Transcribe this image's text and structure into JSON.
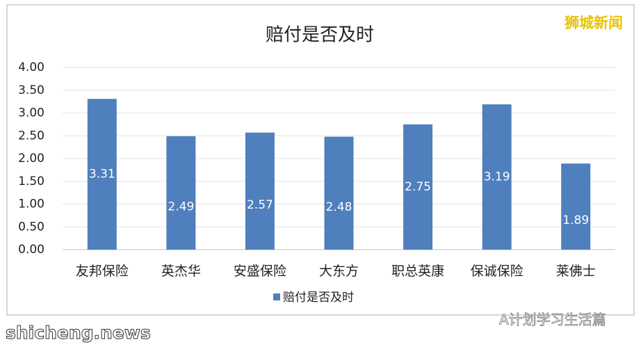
{
  "chart_data": {
    "type": "bar",
    "title": "赔付是否及时",
    "categories": [
      "友邦保险",
      "英杰华",
      "安盛保险",
      "大东方",
      "职总英康",
      "保诚保险",
      "莱佛士"
    ],
    "series": [
      {
        "name": "赔付是否及时",
        "color": "#4f7fbd",
        "values": [
          3.31,
          2.49,
          2.57,
          2.48,
          2.75,
          3.19,
          1.89
        ]
      }
    ],
    "ylim": [
      0,
      4
    ],
    "yticks": [
      {
        "value": 0,
        "label": "0.00"
      },
      {
        "value": 0.5,
        "label": "0.50"
      },
      {
        "value": 1,
        "label": "1.00"
      },
      {
        "value": 1.5,
        "label": "1.50"
      },
      {
        "value": 2,
        "label": "2.00"
      },
      {
        "value": 2.5,
        "label": "2.50"
      },
      {
        "value": 3,
        "label": "3.00"
      },
      {
        "value": 3.5,
        "label": "3.50"
      },
      {
        "value": 4,
        "label": "4.00"
      }
    ],
    "grid": true,
    "legend": "bottom",
    "annotations": [
      "狮城新闻",
      "shicheng.news",
      "A计划学习生活篇"
    ]
  }
}
